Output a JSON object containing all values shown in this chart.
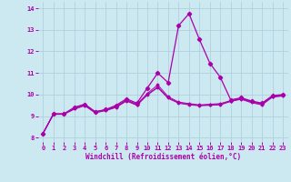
{
  "xlabel": "Windchill (Refroidissement éolien,°C)",
  "xlim": [
    -0.5,
    23.5
  ],
  "ylim": [
    7.8,
    14.3
  ],
  "yticks": [
    8,
    9,
    10,
    11,
    12,
    13,
    14
  ],
  "xticks": [
    0,
    1,
    2,
    3,
    4,
    5,
    6,
    7,
    8,
    9,
    10,
    11,
    12,
    13,
    14,
    15,
    16,
    17,
    18,
    19,
    20,
    21,
    22,
    23
  ],
  "bg_color": "#cce8f0",
  "grid_color": "#aaccd8",
  "line_color": "#aa00aa",
  "spike": [
    8.2,
    9.1,
    9.1,
    9.4,
    9.55,
    9.2,
    9.3,
    9.5,
    9.8,
    9.6,
    10.3,
    11.0,
    10.55,
    13.2,
    13.75,
    12.55,
    11.45,
    10.8,
    9.75,
    9.85,
    9.7,
    9.6,
    9.95,
    10.0
  ],
  "flat1": [
    8.2,
    9.1,
    9.1,
    9.4,
    9.55,
    9.2,
    9.3,
    9.45,
    9.75,
    9.55,
    10.05,
    10.45,
    9.9,
    9.65,
    9.58,
    9.52,
    9.55,
    9.58,
    9.72,
    9.82,
    9.68,
    9.58,
    9.92,
    9.98
  ],
  "flat2": [
    8.2,
    9.1,
    9.1,
    9.35,
    9.5,
    9.18,
    9.28,
    9.42,
    9.72,
    9.52,
    10.0,
    10.35,
    9.85,
    9.62,
    9.55,
    9.5,
    9.52,
    9.55,
    9.7,
    9.8,
    9.65,
    9.55,
    9.9,
    9.95
  ],
  "flat3": [
    8.2,
    9.08,
    9.08,
    9.32,
    9.48,
    9.15,
    9.25,
    9.4,
    9.7,
    9.5,
    9.98,
    10.32,
    9.82,
    9.6,
    9.52,
    9.48,
    9.5,
    9.52,
    9.68,
    9.78,
    9.62,
    9.52,
    9.88,
    9.93
  ],
  "figsize": [
    3.2,
    2.0
  ],
  "dpi": 100
}
